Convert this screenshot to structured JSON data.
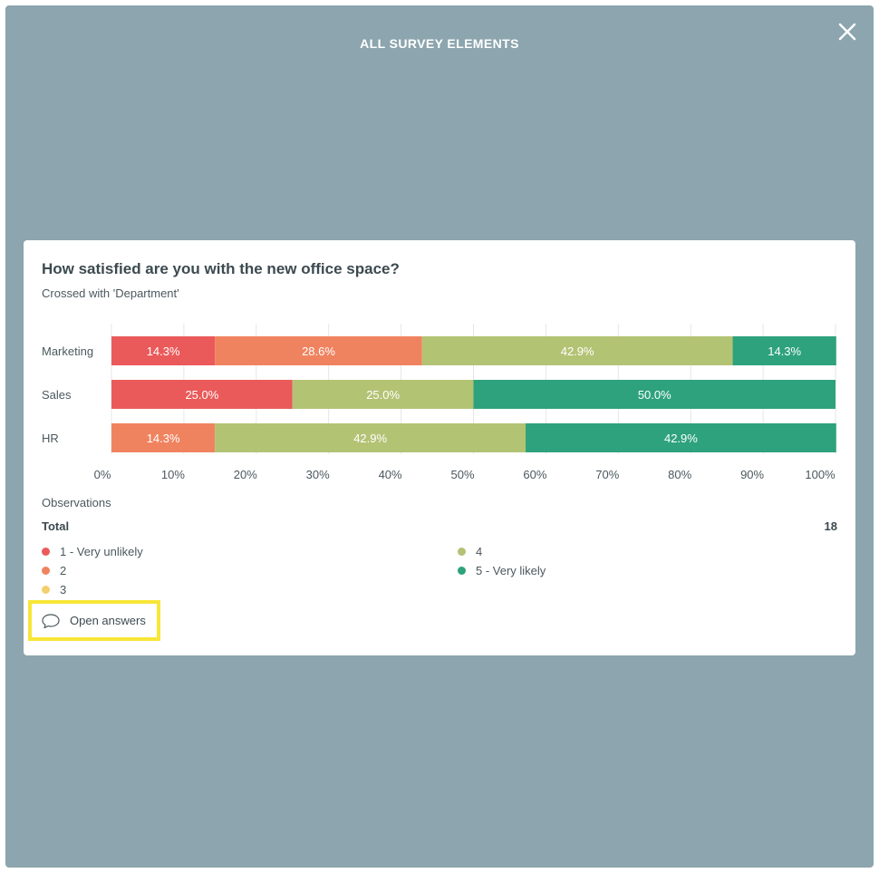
{
  "overlay": {
    "title": "ALL SURVEY ELEMENTS",
    "close_icon": "close-icon"
  },
  "card": {
    "question": "How satisfied are you with the new office space?",
    "subtitle": "Crossed with 'Department'",
    "observations_label": "Observations",
    "total_label": "Total",
    "total_value": "18",
    "open_answers_label": "Open answers",
    "open_answers_icon": "speech-bubble-icon"
  },
  "legend": [
    {
      "label": "1 - Very unlikely",
      "color": "#ea5a5a"
    },
    {
      "label": "2",
      "color": "#f0835f"
    },
    {
      "label": "3",
      "color": "#f3cf6e"
    },
    {
      "label": "4",
      "color": "#b3c374"
    },
    {
      "label": "5 - Very likely",
      "color": "#2ea27c"
    }
  ],
  "chart_data": {
    "type": "bar",
    "orientation": "horizontal",
    "stacked": true,
    "categories": [
      "Marketing",
      "Sales",
      "HR"
    ],
    "xlim": [
      0,
      100
    ],
    "x_ticks": [
      "0%",
      "10%",
      "20%",
      "30%",
      "40%",
      "50%",
      "60%",
      "70%",
      "80%",
      "90%",
      "100%"
    ],
    "grid": true,
    "series": [
      {
        "name": "1 - Very unlikely",
        "color": "#ea5a5a",
        "values": [
          14.3,
          25.0,
          0
        ]
      },
      {
        "name": "2",
        "color": "#f0835f",
        "values": [
          28.6,
          0,
          14.3
        ]
      },
      {
        "name": "3",
        "color": "#f3cf6e",
        "values": [
          0,
          0,
          0
        ]
      },
      {
        "name": "4",
        "color": "#b3c374",
        "values": [
          42.9,
          25.0,
          42.9
        ]
      },
      {
        "name": "5 - Very likely",
        "color": "#2ea27c",
        "values": [
          14.3,
          50.0,
          42.9
        ]
      }
    ],
    "labels": [
      [
        "14.3%",
        "28.6%",
        "",
        "42.9%",
        "14.3%"
      ],
      [
        "25.0%",
        "",
        "",
        "25.0%",
        "50.0%"
      ],
      [
        "",
        "14.3%",
        "",
        "42.9%",
        "42.9%"
      ]
    ]
  }
}
